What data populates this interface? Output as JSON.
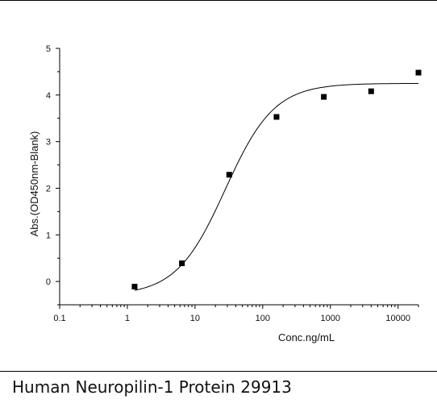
{
  "caption": "Human Neuropilin-1 Protein 29913",
  "chart_data": {
    "type": "scatter",
    "title": "",
    "xlabel": "Conc.ng/mL",
    "ylabel": "Abs.(OD450nm-Blank)",
    "xscale": "log",
    "xlim": [
      0.1,
      20000
    ],
    "ylim": [
      -0.5,
      5
    ],
    "xticks": [
      0.1,
      1,
      10,
      100,
      1000,
      10000
    ],
    "xtick_labels": [
      "0.1",
      "1",
      "10",
      "100",
      "1000",
      "10000"
    ],
    "yticks": [
      0,
      1,
      2,
      3,
      4,
      5
    ],
    "ytick_labels": [
      "0",
      "1",
      "2",
      "3",
      "4",
      "5"
    ],
    "grid": false,
    "series": [
      {
        "marker": "square",
        "points": [
          {
            "x": 1.28,
            "y": -0.11
          },
          {
            "x": 6.4,
            "y": 0.39
          },
          {
            "x": 32,
            "y": 2.29
          },
          {
            "x": 160,
            "y": 3.53
          },
          {
            "x": 800,
            "y": 3.96
          },
          {
            "x": 4000,
            "y": 4.08
          },
          {
            "x": 20000,
            "y": 4.48
          }
        ]
      }
    ],
    "fit_curve": {
      "model": "4PL",
      "bottom": -0.3,
      "top": 4.25,
      "ec50": 28,
      "hill": 1.2,
      "x_range": [
        1.28,
        20000
      ]
    }
  }
}
